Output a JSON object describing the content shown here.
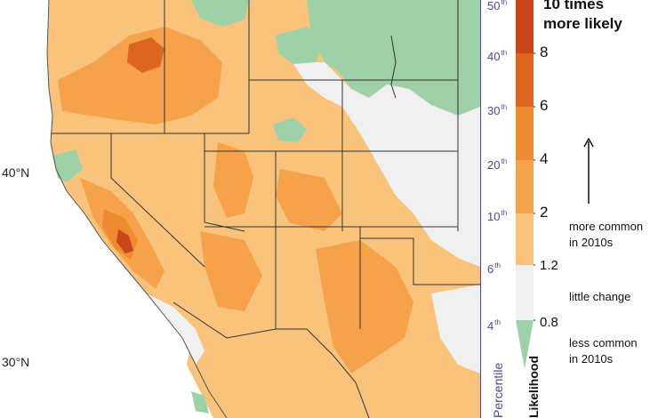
{
  "map": {
    "lat_labels": [
      "40°N",
      "30°N"
    ],
    "colors": {
      "much_more": "#c9461a",
      "more_8": "#dc6520",
      "more_6": "#ee8a2f",
      "more_4": "#f5a24a",
      "more_2": "#f9c37b",
      "more_1": "#fbd79c",
      "little": "#f0f0f0",
      "less": "#9fd1a8",
      "state_line": "#333333"
    }
  },
  "percentile": {
    "title": "Percentile",
    "ticks": [
      {
        "num": "50",
        "sup": "th"
      },
      {
        "num": "40",
        "sup": "th"
      },
      {
        "num": "30",
        "sup": "th"
      },
      {
        "num": "20",
        "sup": "th"
      },
      {
        "num": "10",
        "sup": "th"
      },
      {
        "num": "6",
        "sup": "th"
      },
      {
        "num": "4",
        "sup": "th"
      }
    ]
  },
  "likelihood": {
    "title": "Likelihood",
    "head_line1": "10 times",
    "head_line2": "more likely",
    "values": [
      "8",
      "6",
      "4",
      "2",
      "1.2",
      "0.8"
    ],
    "note_more_1": "more common",
    "note_more_2": "in 2010s",
    "note_little": "little change",
    "note_less_1": "less common",
    "note_less_2": "in 2010s"
  }
}
